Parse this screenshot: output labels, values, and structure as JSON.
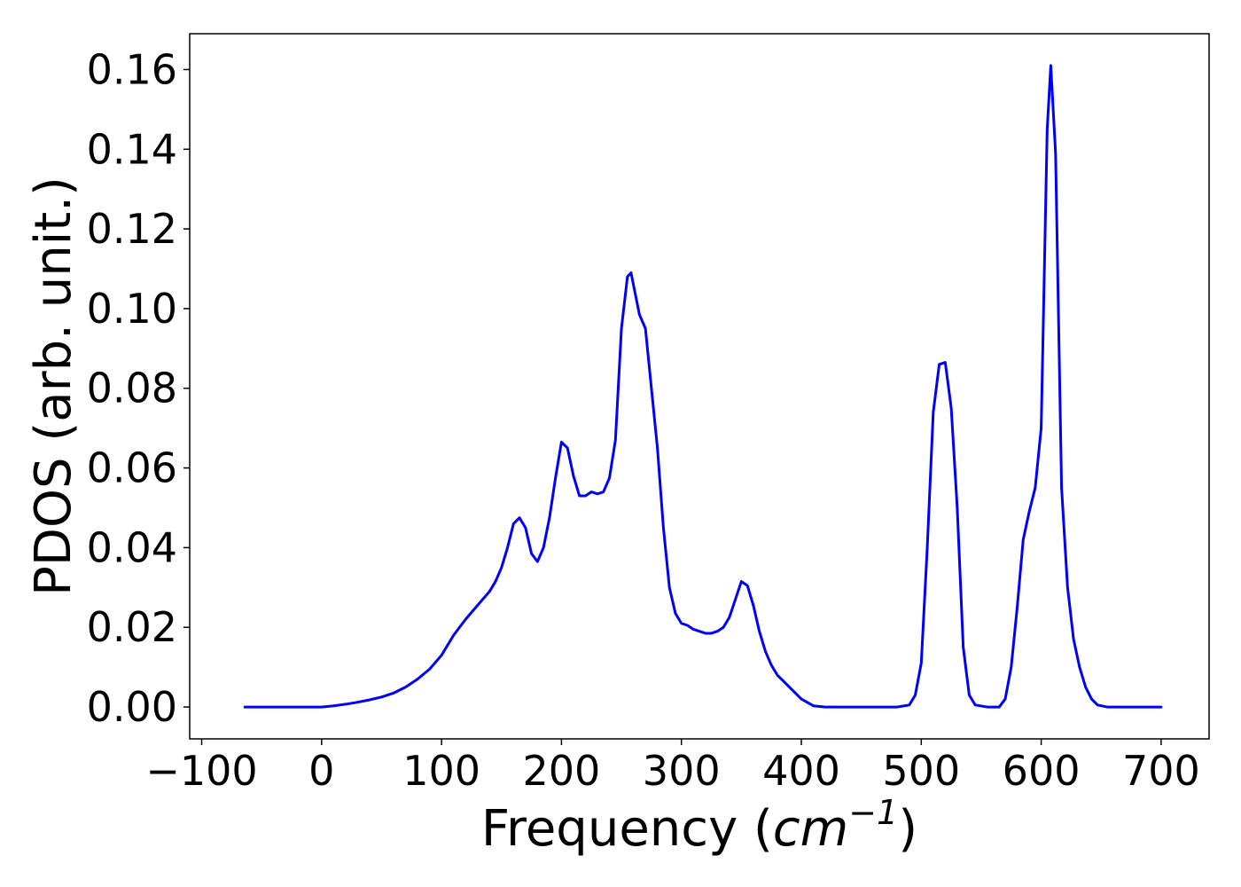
{
  "chart_data": {
    "type": "line",
    "title": "",
    "xlabel": "Frequency (",
    "xlabel_math_base": "cm",
    "xlabel_math_exp": "−1",
    "xlabel_suffix": ")",
    "ylabel": "PDOS (arb. unit.)",
    "xlim": [
      -110,
      740
    ],
    "ylim": [
      -0.008,
      0.169
    ],
    "xticks": [
      -100,
      0,
      100,
      200,
      300,
      400,
      500,
      600,
      700
    ],
    "xtick_labels": [
      "−100",
      "0",
      "100",
      "200",
      "300",
      "400",
      "500",
      "600",
      "700"
    ],
    "yticks": [
      0.0,
      0.02,
      0.04,
      0.06,
      0.08,
      0.1,
      0.12,
      0.14,
      0.16
    ],
    "ytick_labels": [
      "0.00",
      "0.02",
      "0.04",
      "0.06",
      "0.08",
      "0.10",
      "0.12",
      "0.14",
      "0.16"
    ],
    "grid": false,
    "colors": {
      "line": "#0000ff",
      "axes": "#000000"
    },
    "series": [
      {
        "x": [
          -64,
          -40,
          -20,
          0,
          10,
          20,
          30,
          40,
          50,
          60,
          70,
          80,
          90,
          100,
          110,
          120,
          130,
          140,
          145,
          150,
          155,
          160,
          165,
          170,
          175,
          180,
          185,
          190,
          195,
          200,
          205,
          210,
          215,
          220,
          225,
          230,
          235,
          240,
          245,
          250,
          255,
          258,
          265,
          270,
          275,
          280,
          285,
          290,
          295,
          300,
          305,
          310,
          315,
          320,
          325,
          330,
          335,
          340,
          345,
          350,
          355,
          360,
          365,
          370,
          375,
          380,
          385,
          390,
          400,
          410,
          420,
          440,
          460,
          480,
          490,
          495,
          500,
          505,
          510,
          515,
          520,
          525,
          530,
          535,
          540,
          545,
          555,
          565,
          570,
          575,
          580,
          585,
          590,
          595,
          600,
          605,
          608,
          612,
          617,
          622,
          627,
          632,
          637,
          642,
          647,
          655,
          680,
          700
        ],
        "y": [
          0.0,
          0.0,
          0.0,
          0.0,
          0.0003,
          0.0007,
          0.0012,
          0.0018,
          0.0025,
          0.0035,
          0.005,
          0.007,
          0.0095,
          0.013,
          0.018,
          0.022,
          0.0255,
          0.029,
          0.0315,
          0.035,
          0.04,
          0.046,
          0.0475,
          0.045,
          0.0385,
          0.0365,
          0.04,
          0.0475,
          0.0575,
          0.0665,
          0.065,
          0.058,
          0.053,
          0.053,
          0.054,
          0.0535,
          0.054,
          0.0575,
          0.067,
          0.095,
          0.108,
          0.109,
          0.0985,
          0.095,
          0.08,
          0.065,
          0.045,
          0.03,
          0.0235,
          0.021,
          0.0205,
          0.0195,
          0.019,
          0.0185,
          0.0185,
          0.019,
          0.02,
          0.0225,
          0.027,
          0.0315,
          0.0305,
          0.0255,
          0.019,
          0.014,
          0.0105,
          0.008,
          0.0065,
          0.005,
          0.002,
          0.0003,
          0.0,
          0.0,
          0.0,
          0.0,
          0.0005,
          0.003,
          0.011,
          0.04,
          0.074,
          0.086,
          0.0865,
          0.075,
          0.05,
          0.015,
          0.003,
          0.0005,
          0.0,
          0.0,
          0.002,
          0.01,
          0.025,
          0.042,
          0.049,
          0.055,
          0.07,
          0.145,
          0.161,
          0.139,
          0.055,
          0.03,
          0.017,
          0.01,
          0.005,
          0.002,
          0.0005,
          0.0,
          0.0,
          0.0
        ]
      }
    ]
  }
}
